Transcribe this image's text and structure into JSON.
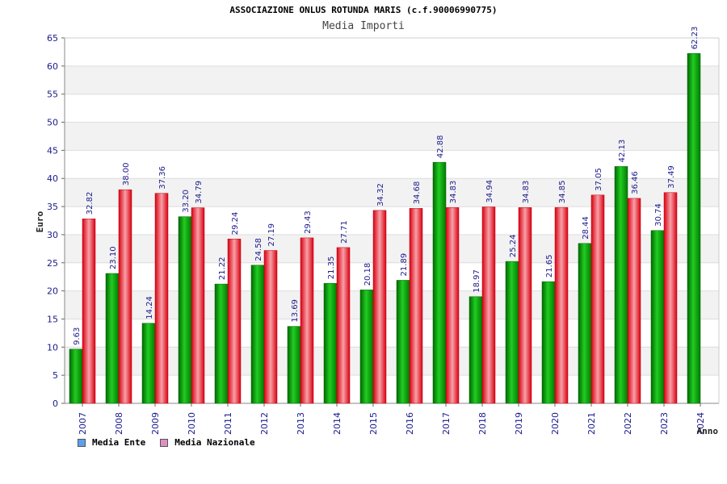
{
  "header": {
    "title": "ASSOCIAZIONE ONLUS ROTUNDA MARIS (c.f.90006990775)",
    "subtitle": "Media Importi"
  },
  "colors": {
    "ente": "#10b010",
    "nazionale": "#e8202a",
    "legend_ente": "#5aa0f0",
    "legend_nazionale": "#e090c0",
    "band": "#f2f2f2",
    "grid": "#dddddd"
  },
  "chart_data": {
    "type": "bar",
    "title": "Media Importi",
    "xlabel": "Anno",
    "ylabel": "Euro",
    "ylim": [
      0,
      65
    ],
    "yticks": [
      0,
      5,
      10,
      15,
      20,
      25,
      30,
      35,
      40,
      45,
      50,
      55,
      60,
      65
    ],
    "categories": [
      "2007",
      "2008",
      "2009",
      "2010",
      "2011",
      "2012",
      "2013",
      "2014",
      "2015",
      "2016",
      "2017",
      "2018",
      "2019",
      "2020",
      "2021",
      "2022",
      "2023",
      "2024"
    ],
    "series": [
      {
        "name": "Media Ente",
        "values": [
          9.63,
          23.1,
          14.24,
          33.2,
          21.22,
          24.58,
          13.69,
          21.35,
          20.18,
          21.89,
          42.88,
          18.97,
          25.24,
          21.65,
          28.44,
          42.13,
          30.74,
          62.23
        ],
        "labels": [
          "9.63",
          "23.10",
          "14.24",
          "33.20",
          "21.22",
          "24.58",
          "13.69",
          "21.35",
          "20.18",
          "21.89",
          "42.88",
          "18.97",
          "25.24",
          "21.65",
          "28.44",
          "42.13",
          "30.74",
          "62.23"
        ]
      },
      {
        "name": "Media Nazionale",
        "values": [
          32.82,
          38.0,
          37.36,
          34.79,
          29.24,
          27.19,
          29.43,
          27.71,
          34.32,
          34.68,
          34.83,
          34.94,
          34.83,
          34.85,
          37.05,
          36.46,
          37.49,
          null
        ],
        "labels": [
          "32.82",
          "38.00",
          "37.36",
          "34.79",
          "29.24",
          "27.19",
          "29.43",
          "27.71",
          "34.32",
          "34.68",
          "34.83",
          "34.94",
          "34.83",
          "34.85",
          "37.05",
          "36.46",
          "37.49",
          null
        ]
      }
    ],
    "legend_position": "bottom-left"
  }
}
